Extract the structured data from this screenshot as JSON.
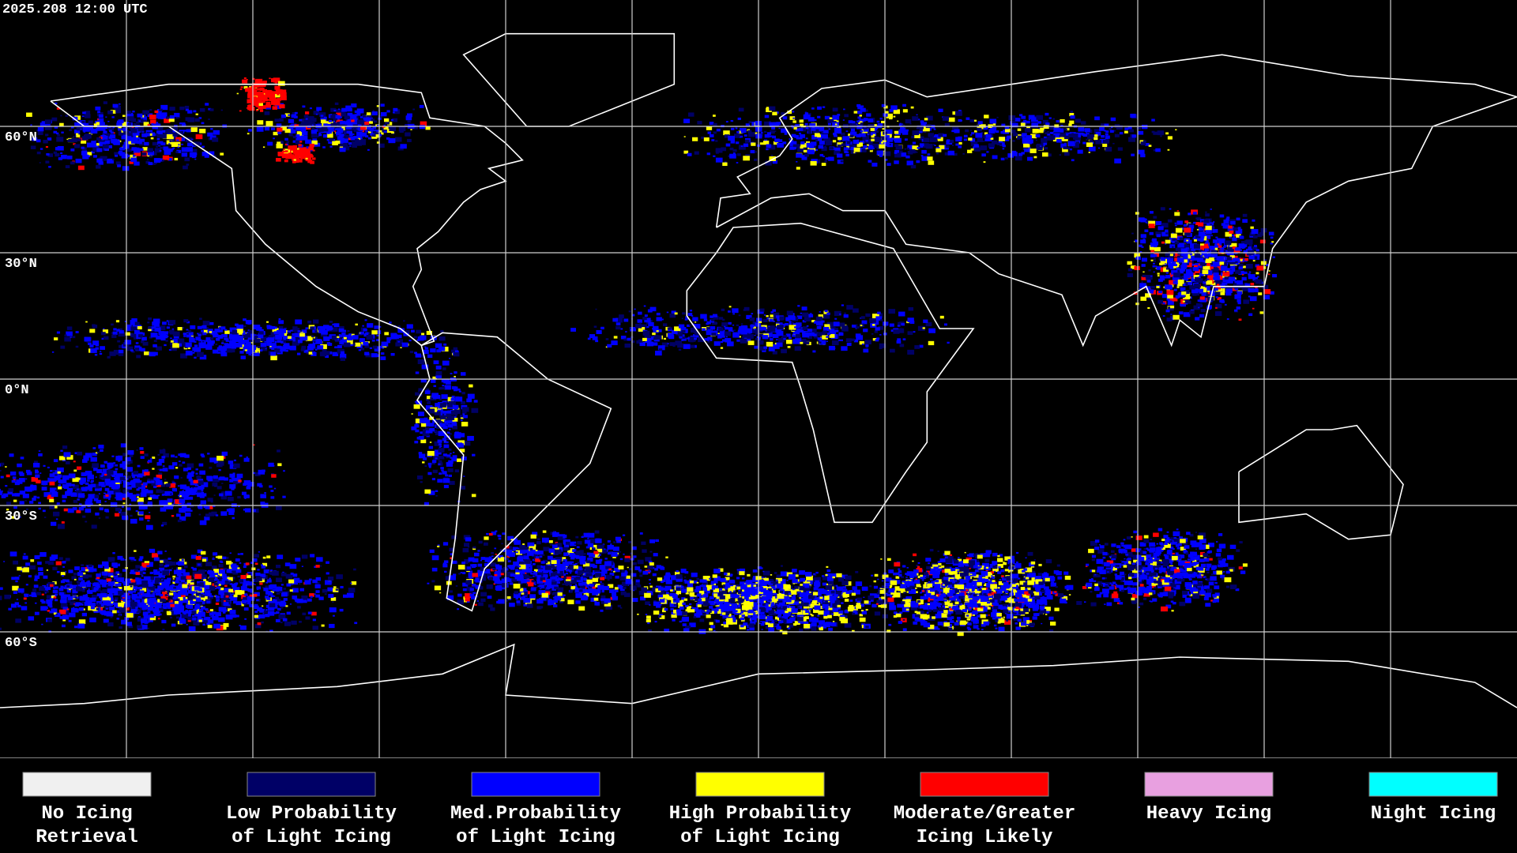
{
  "timestamp": "2025.208 12:00 UTC",
  "latitude_labels": [
    "60°N",
    "30°N",
    "0°N",
    "30°S",
    "60°S"
  ],
  "legend": [
    {
      "color": "#f0f0f0",
      "label": [
        "No Icing",
        "Retrieval"
      ]
    },
    {
      "color": "#000066",
      "label": [
        "Low Probability",
        "of Light Icing"
      ]
    },
    {
      "color": "#0000ff",
      "label": [
        "Med.Probability",
        "of Light Icing"
      ]
    },
    {
      "color": "#ffff00",
      "label": [
        "High Probability",
        "of Light Icing"
      ]
    },
    {
      "color": "#ff0000",
      "label": [
        "Moderate/Greater",
        "Icing Likely"
      ]
    },
    {
      "color": "#e8a0e0",
      "label": [
        "Heavy Icing"
      ]
    },
    {
      "color": "#00ffff",
      "label": [
        "Night Icing"
      ]
    }
  ]
}
